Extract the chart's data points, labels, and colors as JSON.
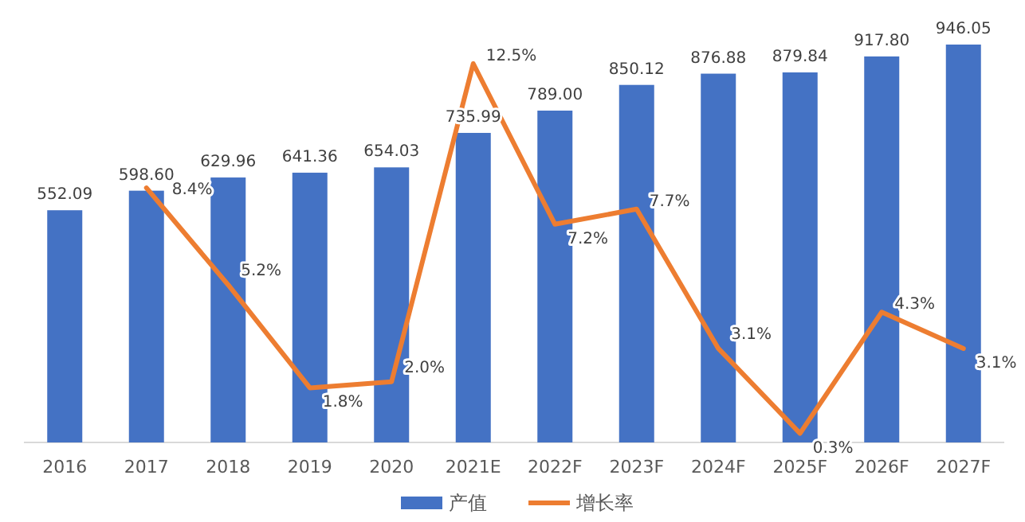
{
  "chart_data": {
    "type": "bar",
    "categories": [
      "2016",
      "2017",
      "2018",
      "2019",
      "2020",
      "2021E",
      "2022F",
      "2023F",
      "2024F",
      "2025F",
      "2026F",
      "2027F"
    ],
    "series": [
      {
        "name": "产值",
        "color": "#4472c4",
        "values": [
          552.09,
          598.6,
          629.96,
          641.36,
          654.03,
          735.99,
          789.0,
          850.12,
          876.88,
          879.84,
          917.8,
          946.05
        ],
        "value_labels": [
          "552.09",
          "598.60",
          "629.96",
          "641.36",
          "654.03",
          "735.99",
          "789.00",
          "850.12",
          "876.88",
          "879.84",
          "917.80",
          "946.05"
        ]
      },
      {
        "name": "增长率",
        "type": "line",
        "axis": "y2",
        "color": "#ed7d31",
        "values": [
          null,
          8.4,
          5.2,
          1.8,
          2.0,
          12.5,
          7.2,
          7.7,
          3.1,
          0.3,
          4.3,
          3.1
        ],
        "value_labels": [
          null,
          "8.4%",
          "5.2%",
          "1.8%",
          "2.0%",
          "12.5%",
          "7.2%",
          "7.7%",
          "3.1%",
          "0.3%",
          "4.3%",
          "3.1%"
        ]
      }
    ],
    "data_labels": true,
    "legend": "bottom"
  }
}
